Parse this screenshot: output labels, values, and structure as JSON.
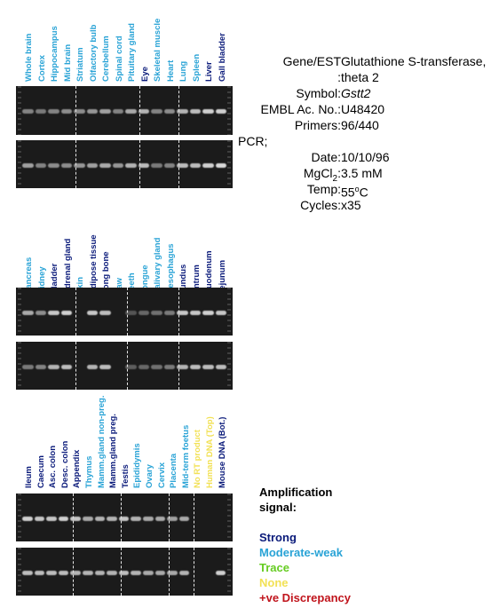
{
  "colors": {
    "strong": "#0a1a7a",
    "moderate": "#29a3d6",
    "trace": "#66cc22",
    "none": "#f2e155",
    "discrepancy": "#c0141c",
    "gel": "#1b1b1b",
    "band": "#d9d9d9"
  },
  "panels": [
    {
      "lanes": [
        {
          "label": "Whole brain",
          "level": "moderate"
        },
        {
          "label": "Cortex",
          "level": "moderate"
        },
        {
          "label": "Hippocampus",
          "level": "moderate"
        },
        {
          "label": "Mid brain",
          "level": "moderate"
        },
        {
          "label": "Striatum",
          "level": "moderate"
        },
        {
          "label": "Olfactory bulb",
          "level": "moderate"
        },
        {
          "label": "Cerebellum",
          "level": "moderate"
        },
        {
          "label": "Spinal cord",
          "level": "moderate"
        },
        {
          "label": "Pituitary gland",
          "level": "moderate"
        },
        {
          "label": "Eye",
          "level": "strong"
        },
        {
          "label": "Skeletal muscle",
          "level": "moderate"
        },
        {
          "label": "Heart",
          "level": "moderate"
        },
        {
          "label": "Lung",
          "level": "moderate"
        },
        {
          "label": "Spleen",
          "level": "moderate"
        },
        {
          "label": "Liver",
          "level": "strong"
        },
        {
          "label": "Gall bladder",
          "level": "strong"
        }
      ],
      "dividers": [
        4,
        9,
        12
      ]
    },
    {
      "lanes": [
        {
          "label": "Pancreas",
          "level": "moderate"
        },
        {
          "label": "Kidney",
          "level": "moderate"
        },
        {
          "label": "Bladder",
          "level": "strong"
        },
        {
          "label": "Adrenal gland",
          "level": "strong"
        },
        {
          "label": "Skin",
          "level": "moderate"
        },
        {
          "label": "Adipose tissue",
          "level": "strong"
        },
        {
          "label": "Long bone",
          "level": "strong"
        },
        {
          "label": "Paw",
          "level": "moderate"
        },
        {
          "label": "Teeth",
          "level": "moderate"
        },
        {
          "label": "Tongue",
          "level": "moderate"
        },
        {
          "label": "Salivary gland",
          "level": "moderate"
        },
        {
          "label": "Oesophagus",
          "level": "moderate"
        },
        {
          "label": "Fundus",
          "level": "strong"
        },
        {
          "label": "Antrum",
          "level": "strong"
        },
        {
          "label": "Duodenum",
          "level": "strong"
        },
        {
          "label": "Jejunum",
          "level": "strong"
        }
      ],
      "dividers": [
        4,
        8,
        12
      ]
    },
    {
      "lanes": [
        {
          "label": "Ileum",
          "level": "strong"
        },
        {
          "label": "Caecum",
          "level": "strong"
        },
        {
          "label": "Asc. colon",
          "level": "strong"
        },
        {
          "label": "Desc. colon",
          "level": "strong"
        },
        {
          "label": "Appendix",
          "level": "strong"
        },
        {
          "label": "Thymus",
          "level": "moderate"
        },
        {
          "label": "Mamm.gland non-preg.",
          "level": "moderate"
        },
        {
          "label": "Mamm.gland preg.",
          "level": "strong"
        },
        {
          "label": "Testis",
          "level": "strong"
        },
        {
          "label": "Epididymis",
          "level": "moderate"
        },
        {
          "label": "Ovary",
          "level": "moderate"
        },
        {
          "label": "Cervix",
          "level": "moderate"
        },
        {
          "label": "Placenta",
          "level": "moderate"
        },
        {
          "label": "Mid-term foetus",
          "level": "moderate"
        },
        {
          "label": "No RT product",
          "level": "none"
        },
        {
          "label": "Human DNA (Top)",
          "level": "none"
        },
        {
          "label": "Mouse DNA (Bot.)",
          "level": "strong"
        }
      ],
      "dividers": [
        4,
        8,
        12,
        14
      ]
    }
  ],
  "gels": [
    {
      "panel": 0,
      "row": 0,
      "intensity": [
        0.55,
        0.5,
        0.55,
        0.6,
        0.6,
        0.65,
        0.7,
        0.55,
        0.75,
        0.8,
        0.55,
        0.6,
        0.8,
        0.85,
        0.95,
        0.95
      ]
    },
    {
      "panel": 0,
      "row": 1,
      "intensity": [
        0.7,
        0.55,
        0.6,
        0.6,
        0.65,
        0.7,
        0.75,
        0.65,
        0.8,
        0.85,
        0.5,
        0.55,
        0.85,
        0.85,
        0.95,
        1.0
      ]
    },
    {
      "panel": 1,
      "row": 0,
      "intensity": [
        0.75,
        0.6,
        0.9,
        0.95,
        0.0,
        0.9,
        0.85,
        0.0,
        0.3,
        0.4,
        0.45,
        0.5,
        0.9,
        0.9,
        0.95,
        0.9
      ]
    },
    {
      "panel": 1,
      "row": 1,
      "intensity": [
        0.5,
        0.55,
        0.8,
        0.85,
        0.0,
        0.8,
        0.85,
        0.0,
        0.35,
        0.4,
        0.45,
        0.5,
        0.8,
        0.85,
        0.85,
        0.85
      ]
    },
    {
      "panel": 2,
      "row": 0,
      "intensity": [
        0.95,
        0.9,
        0.9,
        0.95,
        0.9,
        0.75,
        0.8,
        0.8,
        0.9,
        0.8,
        0.75,
        0.75,
        0.7,
        0.75,
        0.0,
        0.0,
        0.0
      ]
    },
    {
      "panel": 2,
      "row": 1,
      "intensity": [
        0.85,
        0.85,
        0.85,
        0.85,
        0.8,
        0.8,
        0.8,
        0.8,
        0.85,
        0.8,
        0.75,
        0.75,
        0.75,
        0.8,
        0.0,
        0.0,
        0.95
      ]
    }
  ],
  "info": {
    "rows": [
      {
        "key": "Gene/EST",
        "value": "Glutathione S-transferase,"
      },
      {
        "key": ":",
        "value": "theta 2"
      },
      {
        "key": "Symbol:",
        "value": "Gstt2",
        "italic": true
      },
      {
        "key": "EMBL Ac. No.:",
        "value": "U48420"
      },
      {
        "key": "Primers:",
        "value": "96/440"
      },
      {
        "key": "PCR;",
        "value": ""
      },
      {
        "key": "Date:",
        "value": "10/10/96"
      },
      {
        "key": "MgCl2:",
        "value": "3.5 mM"
      },
      {
        "key": "Temp:",
        "value": "55oC"
      },
      {
        "key": "Cycles:",
        "value": "x35"
      }
    ]
  },
  "legend": {
    "title1": "Amplification",
    "title2": "signal:",
    "strong": "Strong",
    "moderate": "Moderate-weak",
    "trace": "Trace",
    "none": "None",
    "discrepancy": "+ve Discrepancy"
  }
}
